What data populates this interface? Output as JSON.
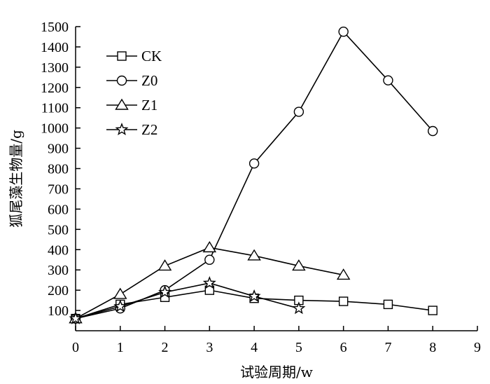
{
  "chart_data": {
    "type": "line",
    "title": "",
    "xlabel": "试验周期/w",
    "ylabel": "狐尾藻生物量/g",
    "xlim": [
      0,
      9
    ],
    "ylim": [
      0,
      1500
    ],
    "x_ticks": [
      0,
      1,
      2,
      3,
      4,
      5,
      6,
      7,
      8,
      9
    ],
    "y_ticks": [
      100,
      200,
      300,
      400,
      500,
      600,
      700,
      800,
      900,
      1000,
      1100,
      1200,
      1300,
      1400,
      1500
    ],
    "grid": false,
    "legend_position": "top-left",
    "series": [
      {
        "name": "CK",
        "marker": "square",
        "x": [
          0,
          1,
          2,
          3,
          4,
          5,
          6,
          7,
          8
        ],
        "y": [
          60,
          130,
          165,
          200,
          160,
          150,
          145,
          130,
          100
        ]
      },
      {
        "name": "Z0",
        "marker": "circle",
        "x": [
          0,
          1,
          2,
          3,
          4,
          5,
          6,
          7,
          8
        ],
        "y": [
          60,
          110,
          200,
          350,
          825,
          1080,
          1475,
          1235,
          985
        ]
      },
      {
        "name": "Z1",
        "marker": "triangle",
        "x": [
          0,
          1,
          2,
          3,
          4,
          5,
          6
        ],
        "y": [
          60,
          180,
          320,
          410,
          370,
          320,
          275
        ]
      },
      {
        "name": "Z2",
        "marker": "star",
        "x": [
          0,
          1,
          2,
          3,
          4,
          5
        ],
        "y": [
          60,
          120,
          190,
          235,
          170,
          110
        ]
      }
    ]
  }
}
